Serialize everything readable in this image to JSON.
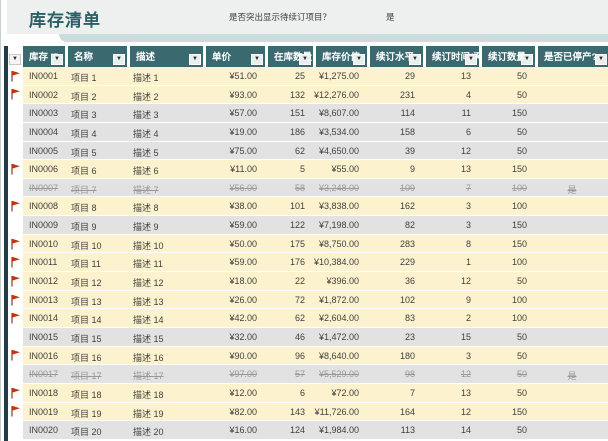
{
  "title": "库存清单",
  "reorder_prompt": {
    "question": "是否突出显示待续订项目？",
    "answer": "是"
  },
  "colors": {
    "header_teal": "#3a696f",
    "title_teal": "#2a5f66",
    "highlight_cream": "#fcf2cd",
    "row_gray": "#e2e2e2",
    "flag_red": "#c63310",
    "accent_bar": "#203c46",
    "band_teal": "#cbdcdd"
  },
  "table": {
    "columns": [
      {
        "key": "id",
        "label": "库存 ID"
      },
      {
        "key": "name",
        "label": "名称"
      },
      {
        "key": "desc",
        "label": "描述"
      },
      {
        "key": "price",
        "label": "单价"
      },
      {
        "key": "qty",
        "label": "在库数量"
      },
      {
        "key": "value",
        "label": "库存价值"
      },
      {
        "key": "level",
        "label": "续订水平"
      },
      {
        "key": "days",
        "label": "续订时间(天)"
      },
      {
        "key": "reorder_qty",
        "label": "续订数量"
      },
      {
        "key": "discontinued",
        "label": "是否已停产?"
      }
    ],
    "rows": [
      {
        "flag": true,
        "highlight": true,
        "strike": false,
        "cells": [
          "IN0001",
          "项目 1",
          "描述 1",
          "¥51.00",
          "25",
          "¥1,275.00",
          "29",
          "13",
          "50",
          ""
        ]
      },
      {
        "flag": true,
        "highlight": true,
        "strike": false,
        "cells": [
          "IN0002",
          "项目 2",
          "描述 2",
          "¥93.00",
          "132",
          "¥12,276.00",
          "231",
          "4",
          "50",
          ""
        ]
      },
      {
        "flag": false,
        "highlight": false,
        "strike": false,
        "cells": [
          "IN0003",
          "项目 3",
          "描述 3",
          "¥57.00",
          "151",
          "¥8,607.00",
          "114",
          "11",
          "150",
          ""
        ]
      },
      {
        "flag": false,
        "highlight": false,
        "strike": false,
        "cells": [
          "IN0004",
          "项目 4",
          "描述 4",
          "¥19.00",
          "186",
          "¥3,534.00",
          "158",
          "6",
          "50",
          ""
        ]
      },
      {
        "flag": false,
        "highlight": false,
        "strike": false,
        "cells": [
          "IN0005",
          "项目 5",
          "描述 5",
          "¥75.00",
          "62",
          "¥4,650.00",
          "39",
          "12",
          "50",
          ""
        ]
      },
      {
        "flag": true,
        "highlight": true,
        "strike": false,
        "cells": [
          "IN0006",
          "项目 6",
          "描述 6",
          "¥11.00",
          "5",
          "¥55.00",
          "9",
          "13",
          "150",
          ""
        ]
      },
      {
        "flag": false,
        "highlight": false,
        "strike": true,
        "cells": [
          "IN0007",
          "项目 7",
          "描述 7",
          "¥56.00",
          "58",
          "¥3,248.00",
          "109",
          "7",
          "100",
          "是"
        ]
      },
      {
        "flag": true,
        "highlight": true,
        "strike": false,
        "cells": [
          "IN0008",
          "项目 8",
          "描述 8",
          "¥38.00",
          "101",
          "¥3,838.00",
          "162",
          "3",
          "100",
          ""
        ]
      },
      {
        "flag": false,
        "highlight": false,
        "strike": false,
        "cells": [
          "IN0009",
          "项目 9",
          "描述 9",
          "¥59.00",
          "122",
          "¥7,198.00",
          "82",
          "3",
          "150",
          ""
        ]
      },
      {
        "flag": true,
        "highlight": true,
        "strike": false,
        "cells": [
          "IN0010",
          "项目 10",
          "描述 10",
          "¥50.00",
          "175",
          "¥8,750.00",
          "283",
          "8",
          "150",
          ""
        ]
      },
      {
        "flag": true,
        "highlight": true,
        "strike": false,
        "cells": [
          "IN0011",
          "项目 11",
          "描述 11",
          "¥59.00",
          "176",
          "¥10,384.00",
          "229",
          "1",
          "100",
          ""
        ]
      },
      {
        "flag": true,
        "highlight": true,
        "strike": false,
        "cells": [
          "IN0012",
          "项目 12",
          "描述 12",
          "¥18.00",
          "22",
          "¥396.00",
          "36",
          "12",
          "50",
          ""
        ]
      },
      {
        "flag": true,
        "highlight": true,
        "strike": false,
        "cells": [
          "IN0013",
          "项目 13",
          "描述 13",
          "¥26.00",
          "72",
          "¥1,872.00",
          "102",
          "9",
          "100",
          ""
        ]
      },
      {
        "flag": true,
        "highlight": true,
        "strike": false,
        "cells": [
          "IN0014",
          "项目 14",
          "描述 14",
          "¥42.00",
          "62",
          "¥2,604.00",
          "83",
          "2",
          "100",
          ""
        ]
      },
      {
        "flag": false,
        "highlight": false,
        "strike": false,
        "cells": [
          "IN0015",
          "项目 15",
          "描述 15",
          "¥32.00",
          "46",
          "¥1,472.00",
          "23",
          "15",
          "50",
          ""
        ]
      },
      {
        "flag": true,
        "highlight": true,
        "strike": false,
        "cells": [
          "IN0016",
          "项目 16",
          "描述 16",
          "¥90.00",
          "96",
          "¥8,640.00",
          "180",
          "3",
          "50",
          ""
        ]
      },
      {
        "flag": false,
        "highlight": false,
        "strike": true,
        "cells": [
          "IN0017",
          "项目 17",
          "描述 17",
          "¥97.00",
          "57",
          "¥5,529.00",
          "98",
          "12",
          "50",
          "是"
        ]
      },
      {
        "flag": true,
        "highlight": true,
        "strike": false,
        "cells": [
          "IN0018",
          "项目 18",
          "描述 18",
          "¥12.00",
          "6",
          "¥72.00",
          "7",
          "13",
          "50",
          ""
        ]
      },
      {
        "flag": true,
        "highlight": true,
        "strike": false,
        "cells": [
          "IN0019",
          "项目 19",
          "描述 19",
          "¥82.00",
          "143",
          "¥11,726.00",
          "164",
          "12",
          "150",
          ""
        ]
      },
      {
        "flag": false,
        "highlight": false,
        "strike": false,
        "cells": [
          "IN0020",
          "项目 20",
          "描述 20",
          "¥16.00",
          "124",
          "¥1,984.00",
          "113",
          "14",
          "50",
          ""
        ]
      }
    ]
  }
}
